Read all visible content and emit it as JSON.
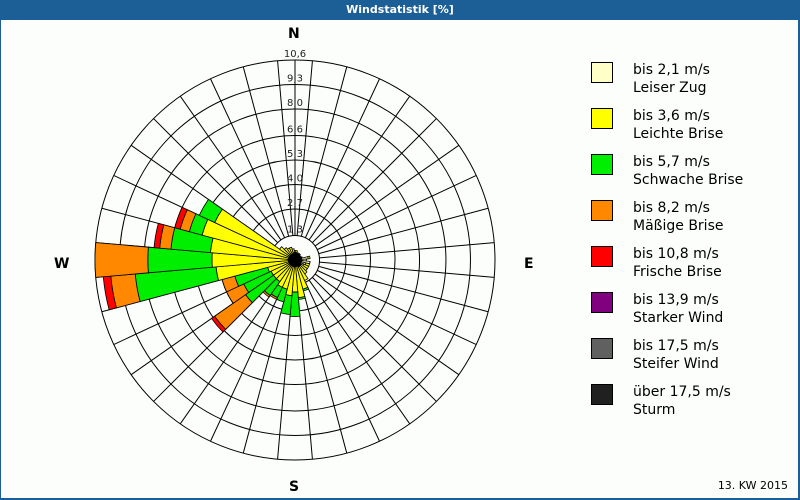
{
  "window": {
    "title": "Windstatistik [%]"
  },
  "compass": {
    "n": "N",
    "e": "E",
    "s": "S",
    "w": "W"
  },
  "footer": {
    "period": "13. KW 2015"
  },
  "legend": {
    "items": [
      {
        "range": "bis 2,1 m/s",
        "name": "Leiser Zug",
        "color": "#ffffc8"
      },
      {
        "range": "bis 3,6 m/s",
        "name": "Leichte Brise",
        "color": "#ffff00"
      },
      {
        "range": "bis 5,7 m/s",
        "name": "Schwache Brise",
        "color": "#00ee00"
      },
      {
        "range": "bis 8,2 m/s",
        "name": "Mäßige Brise",
        "color": "#ff8800"
      },
      {
        "range": "bis 10,8 m/s",
        "name": "Frische Brise",
        "color": "#ff0000"
      },
      {
        "range": "bis 13,9 m/s",
        "name": "Starker Wind",
        "color": "#800080"
      },
      {
        "range": "bis 17,5 m/s",
        "name": "Steifer Wind",
        "color": "#606060"
      },
      {
        "range": "über 17,5 m/s",
        "name": "Sturm",
        "color": "#202020"
      }
    ]
  },
  "chart_data": {
    "type": "wind_rose",
    "title": "Windstatistik [%]",
    "subtitle": "13. KW 2015",
    "unit": "%",
    "radial_ticks": [
      1.3,
      2.7,
      4.0,
      5.3,
      6.6,
      8.0,
      9.3,
      10.6
    ],
    "r_max": 10.6,
    "sector_width_deg": 10,
    "direction_labels": [
      "N",
      "E",
      "S",
      "W"
    ],
    "classes": [
      "bis 2,1 m/s",
      "bis 3,6 m/s",
      "bis 5,7 m/s",
      "bis 8,2 m/s",
      "bis 10,8 m/s",
      "bis 13,9 m/s",
      "bis 17,5 m/s",
      "über 17,5 m/s"
    ],
    "colors": [
      "#ffffc8",
      "#ffff00",
      "#00ee00",
      "#ff8800",
      "#ff0000",
      "#800080",
      "#606060",
      "#202020"
    ],
    "note": "values are cumulative outer radii (%) per class, estimated from pixels",
    "sectors": [
      {
        "dir": 0,
        "cum": [
          0.4,
          0.5
        ]
      },
      {
        "dir": 10,
        "cum": [
          0.4,
          0.5
        ]
      },
      {
        "dir": 20,
        "cum": [
          0.4,
          0.4
        ]
      },
      {
        "dir": 30,
        "cum": [
          0.4,
          0.4
        ]
      },
      {
        "dir": 40,
        "cum": [
          0.4,
          0.4
        ]
      },
      {
        "dir": 50,
        "cum": [
          0.3,
          0.3
        ]
      },
      {
        "dir": 60,
        "cum": [
          0.3,
          0.3
        ]
      },
      {
        "dir": 70,
        "cum": [
          0.4,
          0.4
        ]
      },
      {
        "dir": 80,
        "cum": [
          0.7,
          0.8
        ]
      },
      {
        "dir": 90,
        "cum": [
          0.6,
          0.6
        ]
      },
      {
        "dir": 100,
        "cum": [
          0.8,
          0.8
        ]
      },
      {
        "dir": 110,
        "cum": [
          0.6,
          0.8
        ]
      },
      {
        "dir": 120,
        "cum": [
          0.5,
          0.8
        ]
      },
      {
        "dir": 130,
        "cum": [
          0.4,
          0.8
        ]
      },
      {
        "dir": 140,
        "cum": [
          0.4,
          0.9
        ]
      },
      {
        "dir": 150,
        "cum": [
          0.4,
          1.2
        ]
      },
      {
        "dir": 160,
        "cum": [
          0.3,
          1.6,
          1.7
        ]
      },
      {
        "dir": 170,
        "cum": [
          0.3,
          2.0,
          2.1
        ]
      },
      {
        "dir": 180,
        "cum": [
          0.3,
          1.7,
          3.0
        ]
      },
      {
        "dir": 190,
        "cum": [
          0.3,
          1.9,
          2.9
        ]
      },
      {
        "dir": 200,
        "cum": [
          0.3,
          1.6,
          2.3
        ]
      },
      {
        "dir": 210,
        "cum": [
          0.3,
          1.6,
          2.2,
          2.3
        ]
      },
      {
        "dir": 220,
        "cum": [
          0.3,
          1.4,
          2.3,
          2.4
        ]
      },
      {
        "dir": 230,
        "cum": [
          0.3,
          1.4,
          3.2,
          5.2,
          5.4
        ]
      },
      {
        "dir": 240,
        "cum": [
          0.3,
          1.4,
          3.0,
          4.0
        ]
      },
      {
        "dir": 250,
        "cum": [
          0.3,
          1.5,
          3.3,
          4.0
        ]
      },
      {
        "dir": 260,
        "cum": [
          0.3,
          4.2,
          8.5,
          9.8,
          10.2
        ]
      },
      {
        "dir": 270,
        "cum": [
          0.3,
          4.4,
          7.8,
          10.6
        ]
      },
      {
        "dir": 280,
        "cum": [
          0.3,
          4.5,
          6.6,
          7.2,
          7.5
        ]
      },
      {
        "dir": 290,
        "cum": [
          0.3,
          5.1,
          5.8,
          6.3,
          6.6
        ]
      },
      {
        "dir": 300,
        "cum": [
          0.3,
          4.7,
          5.6
        ]
      },
      {
        "dir": 310,
        "cum": [
          0.3,
          1.0
        ]
      },
      {
        "dir": 320,
        "cum": [
          0.3,
          0.8
        ]
      },
      {
        "dir": 330,
        "cum": [
          0.3,
          0.7
        ]
      },
      {
        "dir": 340,
        "cum": [
          0.3,
          0.7
        ]
      },
      {
        "dir": 350,
        "cum": [
          0.4,
          0.6
        ]
      }
    ]
  }
}
